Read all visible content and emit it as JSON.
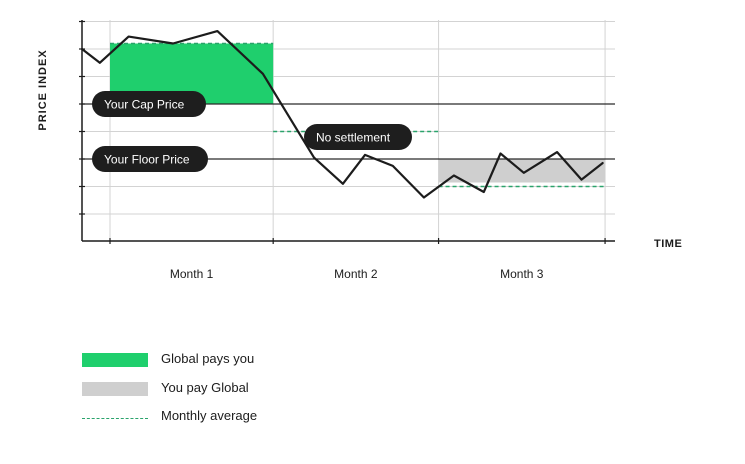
{
  "chart_data": {
    "type": "line",
    "ylabel": "PRICE INDEX",
    "xlabel": "TIME",
    "categories": [
      "Month 1",
      "Month 2",
      "Month 3"
    ],
    "x": [
      0,
      0.16,
      0.42,
      0.82,
      1.22,
      1.63,
      2.09,
      2.35,
      2.55,
      2.8,
      3.08,
      3.35,
      3.62,
      3.77,
      3.98,
      4.28,
      4.5,
      4.69
    ],
    "series": [
      {
        "values": [
          6.0,
          5.5,
          6.45,
          6.2,
          6.65,
          5.1,
          2.05,
          1.1,
          2.15,
          1.75,
          0.6,
          1.4,
          0.8,
          2.2,
          1.5,
          2.25,
          1.25,
          1.85
        ]
      }
    ],
    "xlim": [
      0,
      4.69
    ],
    "ylim": [
      -1,
      7
    ],
    "months": [
      {
        "x0": 0.16,
        "x1": 1.63,
        "average": 6.2
      },
      {
        "x0": 1.63,
        "x1": 3.12,
        "average": 3.0
      },
      {
        "x0": 3.12,
        "x1": 4.62,
        "average": 1.0
      }
    ],
    "cap_price": 4.0,
    "floor_price": 2.0,
    "cap_label": "Your Cap Price",
    "floor_label": "Your Floor Price",
    "no_settlement_label": "No settlement",
    "grid": true,
    "legend": [
      {
        "label": "Global pays you",
        "color": "#1fcf6d"
      },
      {
        "label": "You pay Global",
        "color": "#cfcfcf"
      },
      {
        "label": "Monthly average",
        "color": "#2aa36b"
      }
    ],
    "colors": {
      "line": "#1c1c1c",
      "grid": "#d3d3d3",
      "pill": "#1e1e1e",
      "pill_text": "#ffffff"
    }
  }
}
